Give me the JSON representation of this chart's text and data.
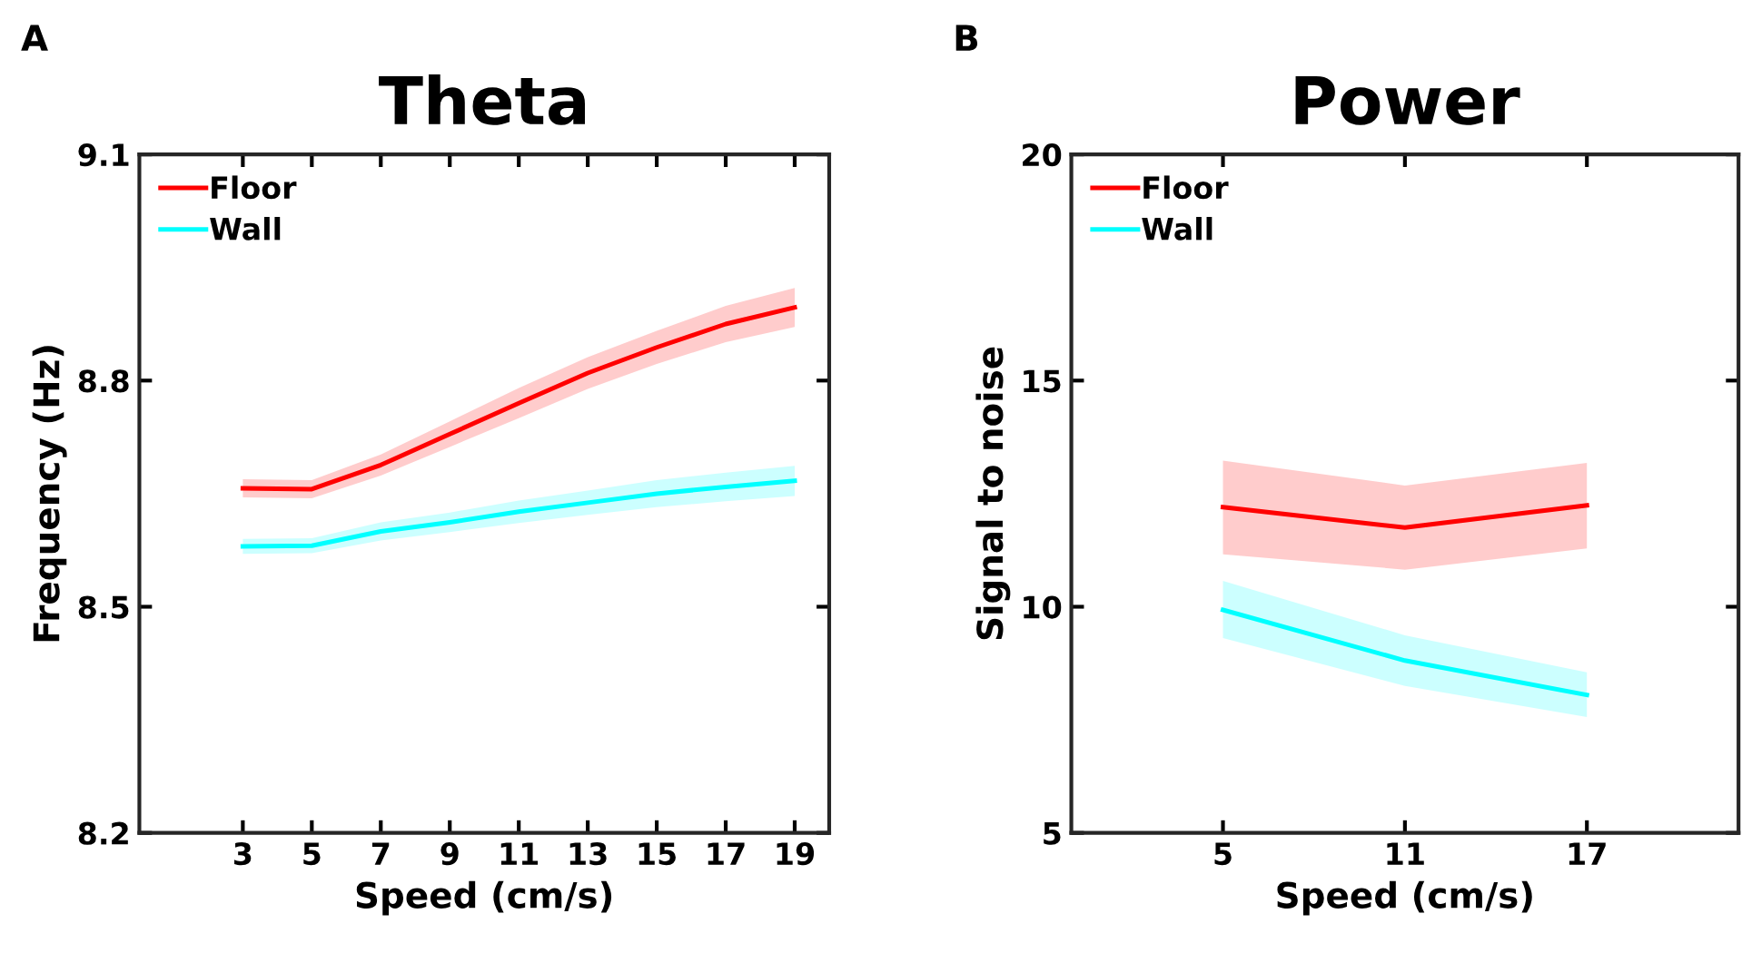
{
  "chart_data": [
    {
      "type": "line",
      "title": "Theta",
      "xlabel": "Speed (cm/s)",
      "ylabel": "Frequency (Hz)",
      "annotations": [
        "A"
      ],
      "x": [
        3,
        5,
        7,
        9,
        11,
        13,
        15,
        17,
        19
      ],
      "xlim": [
        0,
        20
      ],
      "xticks": [
        3,
        5,
        7,
        9,
        11,
        13,
        15,
        17,
        19
      ],
      "ylim": [
        8.2,
        9.1
      ],
      "yticks": [
        8.2,
        8.5,
        8.8,
        9.1
      ],
      "legend": "top left",
      "grid": false,
      "series": [
        {
          "name": "Floor",
          "color": "#ff0000",
          "values": [
            8.657,
            8.656,
            8.688,
            8.729,
            8.77,
            8.81,
            8.844,
            8.875,
            8.897
          ],
          "lower": [
            8.645,
            8.644,
            8.674,
            8.712,
            8.75,
            8.789,
            8.822,
            8.851,
            8.871
          ],
          "upper": [
            8.669,
            8.668,
            8.702,
            8.746,
            8.79,
            8.831,
            8.866,
            8.899,
            8.923
          ]
        },
        {
          "name": "Wall",
          "color": "#00ffff",
          "values": [
            8.58,
            8.581,
            8.6,
            8.612,
            8.626,
            8.638,
            8.65,
            8.659,
            8.667
          ],
          "lower": [
            8.57,
            8.571,
            8.588,
            8.599,
            8.611,
            8.622,
            8.632,
            8.64,
            8.647
          ],
          "upper": [
            8.59,
            8.591,
            8.612,
            8.625,
            8.641,
            8.654,
            8.668,
            8.678,
            8.687
          ]
        }
      ]
    },
    {
      "type": "line",
      "title": "Power",
      "xlabel": "Speed (cm/s)",
      "ylabel": "Signal to noise",
      "annotations": [
        "B"
      ],
      "x": [
        5,
        11,
        17
      ],
      "xlim": [
        0,
        22
      ],
      "xticks": [
        5,
        11,
        17
      ],
      "ylim": [
        5,
        20
      ],
      "yticks": [
        5,
        10,
        15,
        20
      ],
      "legend": "top left",
      "grid": false,
      "series": [
        {
          "name": "Floor",
          "color": "#ff0000",
          "values": [
            12.2,
            11.75,
            12.24
          ],
          "lower": [
            11.16,
            10.82,
            11.29
          ],
          "upper": [
            13.23,
            12.68,
            13.18
          ]
        },
        {
          "name": "Wall",
          "color": "#00ffff",
          "values": [
            9.93,
            8.81,
            8.05
          ],
          "lower": [
            9.31,
            8.25,
            7.56
          ],
          "upper": [
            10.57,
            9.37,
            8.55
          ]
        }
      ]
    }
  ]
}
